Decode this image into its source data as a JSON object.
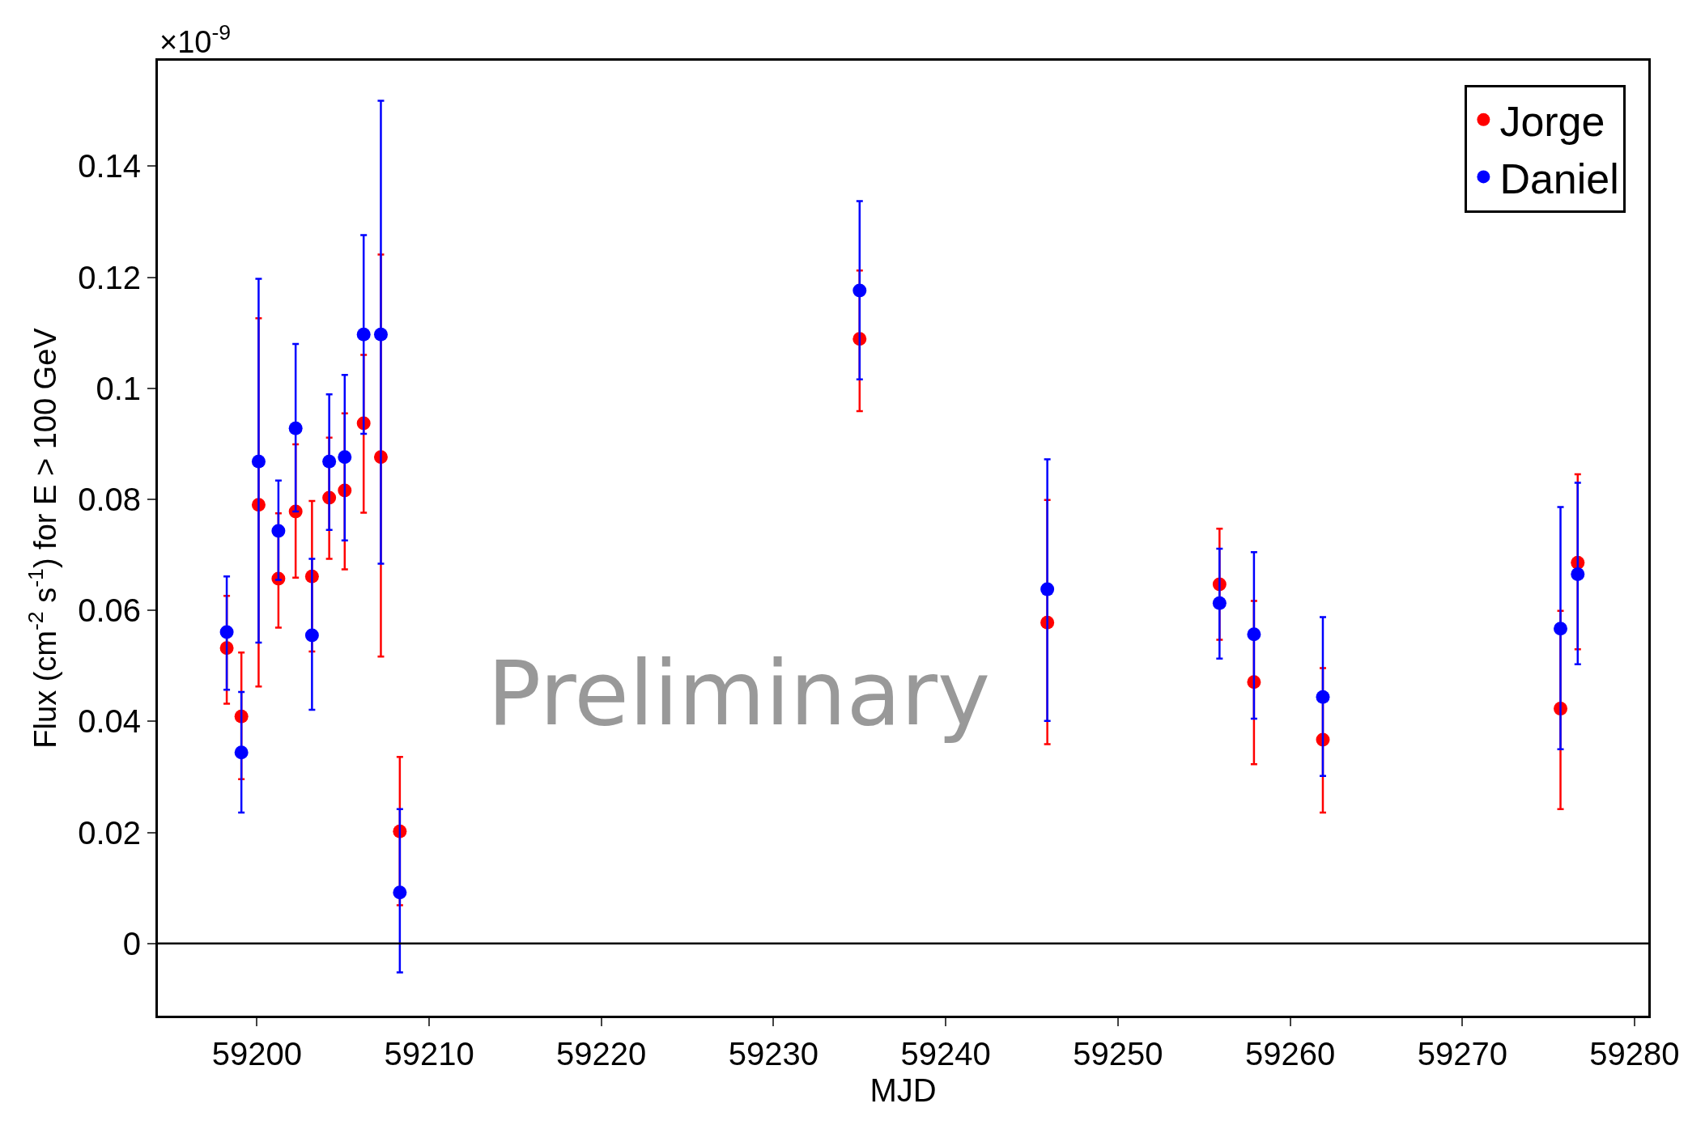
{
  "chart_data": {
    "type": "scatter",
    "ylabel": "Flux (cm$^{-2}$ s$^{-1}$) for E > 100 GeV",
    "xlabel": "MJD",
    "annotations": [
      "×10$^{-9}$",
      "Preliminary"
    ],
    "x": [
      59198.25,
      59199.1,
      59200.1,
      59201.25,
      59202.25,
      59203.2,
      59204.2,
      59205.1,
      59206.2,
      59207.2,
      59208.3,
      59235,
      59245.9,
      59255.9,
      59257.9,
      59261.9,
      59275.7,
      59276.7
    ],
    "series": [
      {
        "name": "Jorge",
        "color": "#ff0000",
        "values": [
          0.0532,
          0.0409,
          0.079,
          0.0657,
          0.0778,
          0.0661,
          0.0803,
          0.0816,
          0.0937,
          0.0876,
          0.0202,
          0.1089,
          0.0578,
          0.0647,
          0.0471,
          0.0367,
          0.0423,
          0.0686
        ],
        "errors": [
          [
            0.0432,
            0.0626
          ],
          [
            0.0296,
            0.0524
          ],
          [
            0.0463,
            0.1126
          ],
          [
            0.0569,
            0.0775
          ],
          [
            0.0659,
            0.0899
          ],
          [
            0.0526,
            0.0797
          ],
          [
            0.0693,
            0.0911
          ],
          [
            0.0674,
            0.0955
          ],
          [
            0.0776,
            0.106
          ],
          [
            0.0517,
            0.1241
          ],
          [
            0.0069,
            0.0336
          ],
          [
            0.0959,
            0.1212
          ],
          [
            0.0359,
            0.0799
          ],
          [
            0.0547,
            0.0747
          ],
          [
            0.0323,
            0.0617
          ],
          [
            0.0236,
            0.0496
          ],
          [
            0.0242,
            0.0599
          ],
          [
            0.053,
            0.0845
          ]
        ]
      },
      {
        "name": "Daniel",
        "color": "#0000ff",
        "values": [
          0.0561,
          0.0344,
          0.0868,
          0.0743,
          0.0928,
          0.0555,
          0.0868,
          0.0876,
          0.1097,
          0.1097,
          0.0092,
          0.1176,
          0.0638,
          0.0613,
          0.0557,
          0.0444,
          0.0567,
          0.0665
        ],
        "errors": [
          [
            0.0457,
            0.0661
          ],
          [
            0.0236,
            0.0453
          ],
          [
            0.0542,
            0.1197
          ],
          [
            0.0655,
            0.0834
          ],
          [
            0.0778,
            0.108
          ],
          [
            0.0421,
            0.0693
          ],
          [
            0.0745,
            0.0989
          ],
          [
            0.0726,
            0.1024
          ],
          [
            0.0918,
            0.1276
          ],
          [
            0.0684,
            0.1518
          ],
          [
            -0.0052,
            0.0242
          ],
          [
            0.1016,
            0.1337
          ],
          [
            0.0401,
            0.0872
          ],
          [
            0.0513,
            0.0711
          ],
          [
            0.0405,
            0.0705
          ],
          [
            0.0302,
            0.0588
          ],
          [
            0.035,
            0.0786
          ],
          [
            0.0503,
            0.083
          ]
        ]
      }
    ],
    "xlim": [
      59194.25,
      59280.8
    ],
    "xticks": [
      59200,
      59210,
      59220,
      59230,
      59240,
      59250,
      59260,
      59270,
      59280
    ],
    "ylim": [
      -0.013,
      0.159
    ],
    "yticks": [
      0,
      0.02,
      0.04,
      0.06,
      0.08,
      0.1,
      0.12,
      0.14
    ],
    "ref_lines": [
      {
        "axis": "y",
        "value": 0,
        "color": "#000000"
      }
    ],
    "grid": false,
    "legend": "top right",
    "marker": "circle"
  }
}
